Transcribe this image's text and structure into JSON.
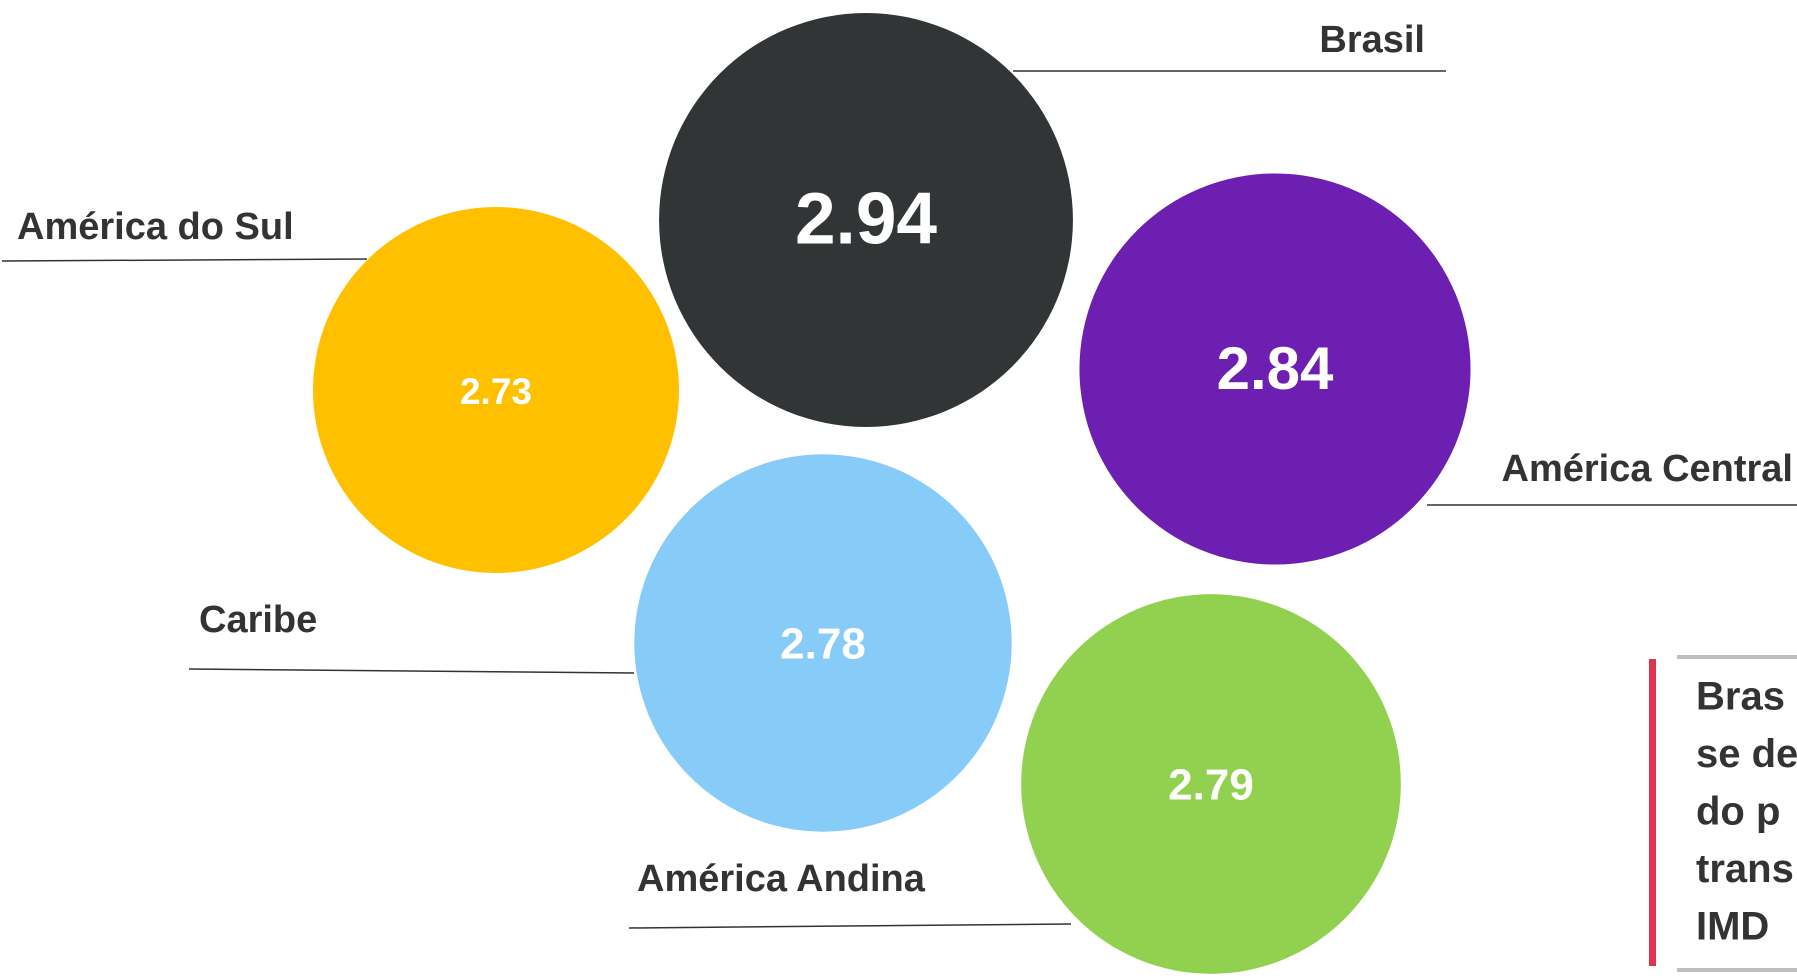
{
  "chart_data": {
    "type": "bubble",
    "categories": [
      "Brasil",
      "América do Sul",
      "América Central",
      "Caribe",
      "América Andina"
    ],
    "values": [
      2.94,
      2.73,
      2.84,
      2.78,
      2.79
    ],
    "colors": [
      "#323536",
      "#ffc000",
      "#6c1fb0",
      "#87ccf9",
      "#92d050"
    ]
  },
  "callout": {
    "lines": [
      "Bras",
      "se de",
      "do p",
      "trans",
      "IMD"
    ]
  }
}
